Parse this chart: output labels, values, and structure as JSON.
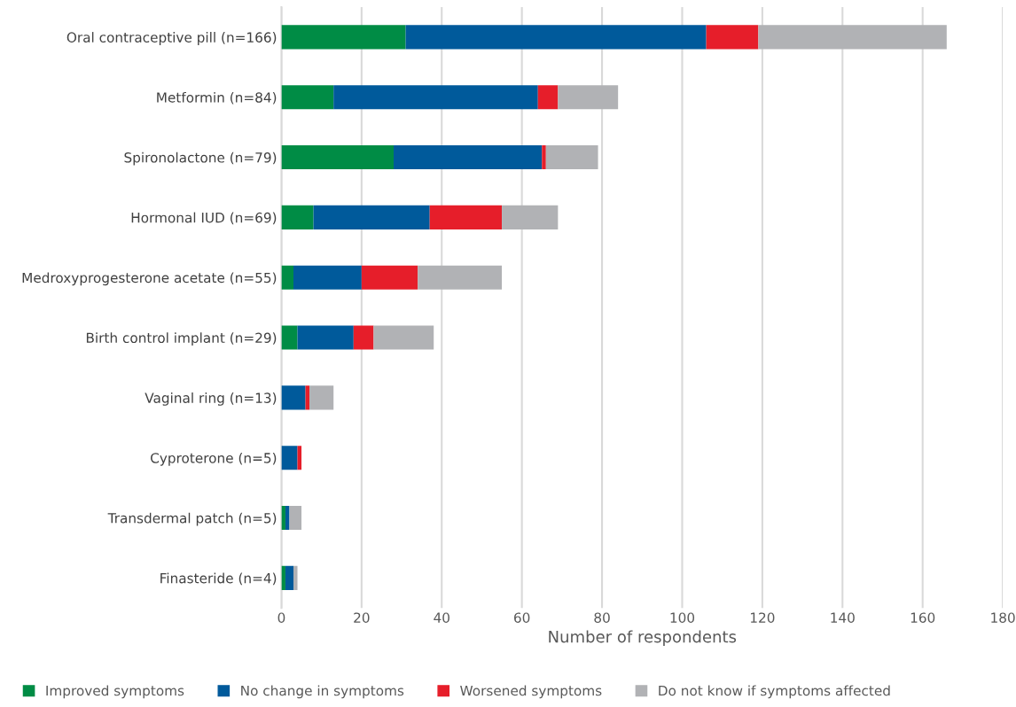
{
  "chart_data": {
    "type": "bar",
    "orientation": "horizontal",
    "stacked": true,
    "categories": [
      "Oral contraceptive pill (n=166)",
      "Metformin (n=84)",
      "Spironolactone (n=79)",
      "Hormonal IUD (n=69)",
      "Medroxyprogesterone acetate (n=55)",
      "Birth control implant (n=29)",
      "Vaginal ring (n=13)",
      "Cyproterone (n=5)",
      "Transdermal patch (n=5)",
      "Finasteride (n=4)"
    ],
    "series": [
      {
        "name": "Improved symptoms",
        "color": "#008c45",
        "values": [
          31,
          13,
          28,
          8,
          3,
          4,
          0,
          0,
          1,
          1
        ]
      },
      {
        "name": "No change in symptoms",
        "color": "#005a9b",
        "values": [
          75,
          51,
          37,
          29,
          17,
          14,
          6,
          4,
          1,
          2
        ]
      },
      {
        "name": "Worsened symptoms",
        "color": "#e61e2a",
        "values": [
          13,
          5,
          1,
          18,
          14,
          5,
          1,
          1,
          0,
          0
        ]
      },
      {
        "name": "Do not know if symptoms affected",
        "color": "#b1b2b5",
        "values": [
          47,
          15,
          13,
          14,
          21,
          15,
          6,
          0,
          3,
          1
        ]
      }
    ],
    "xlabel": "Number of respondents",
    "xlim": [
      0,
      180
    ],
    "xticks": [
      0,
      20,
      40,
      60,
      80,
      100,
      120,
      140,
      160,
      180
    ],
    "grid": "x",
    "legend": "bottom"
  }
}
